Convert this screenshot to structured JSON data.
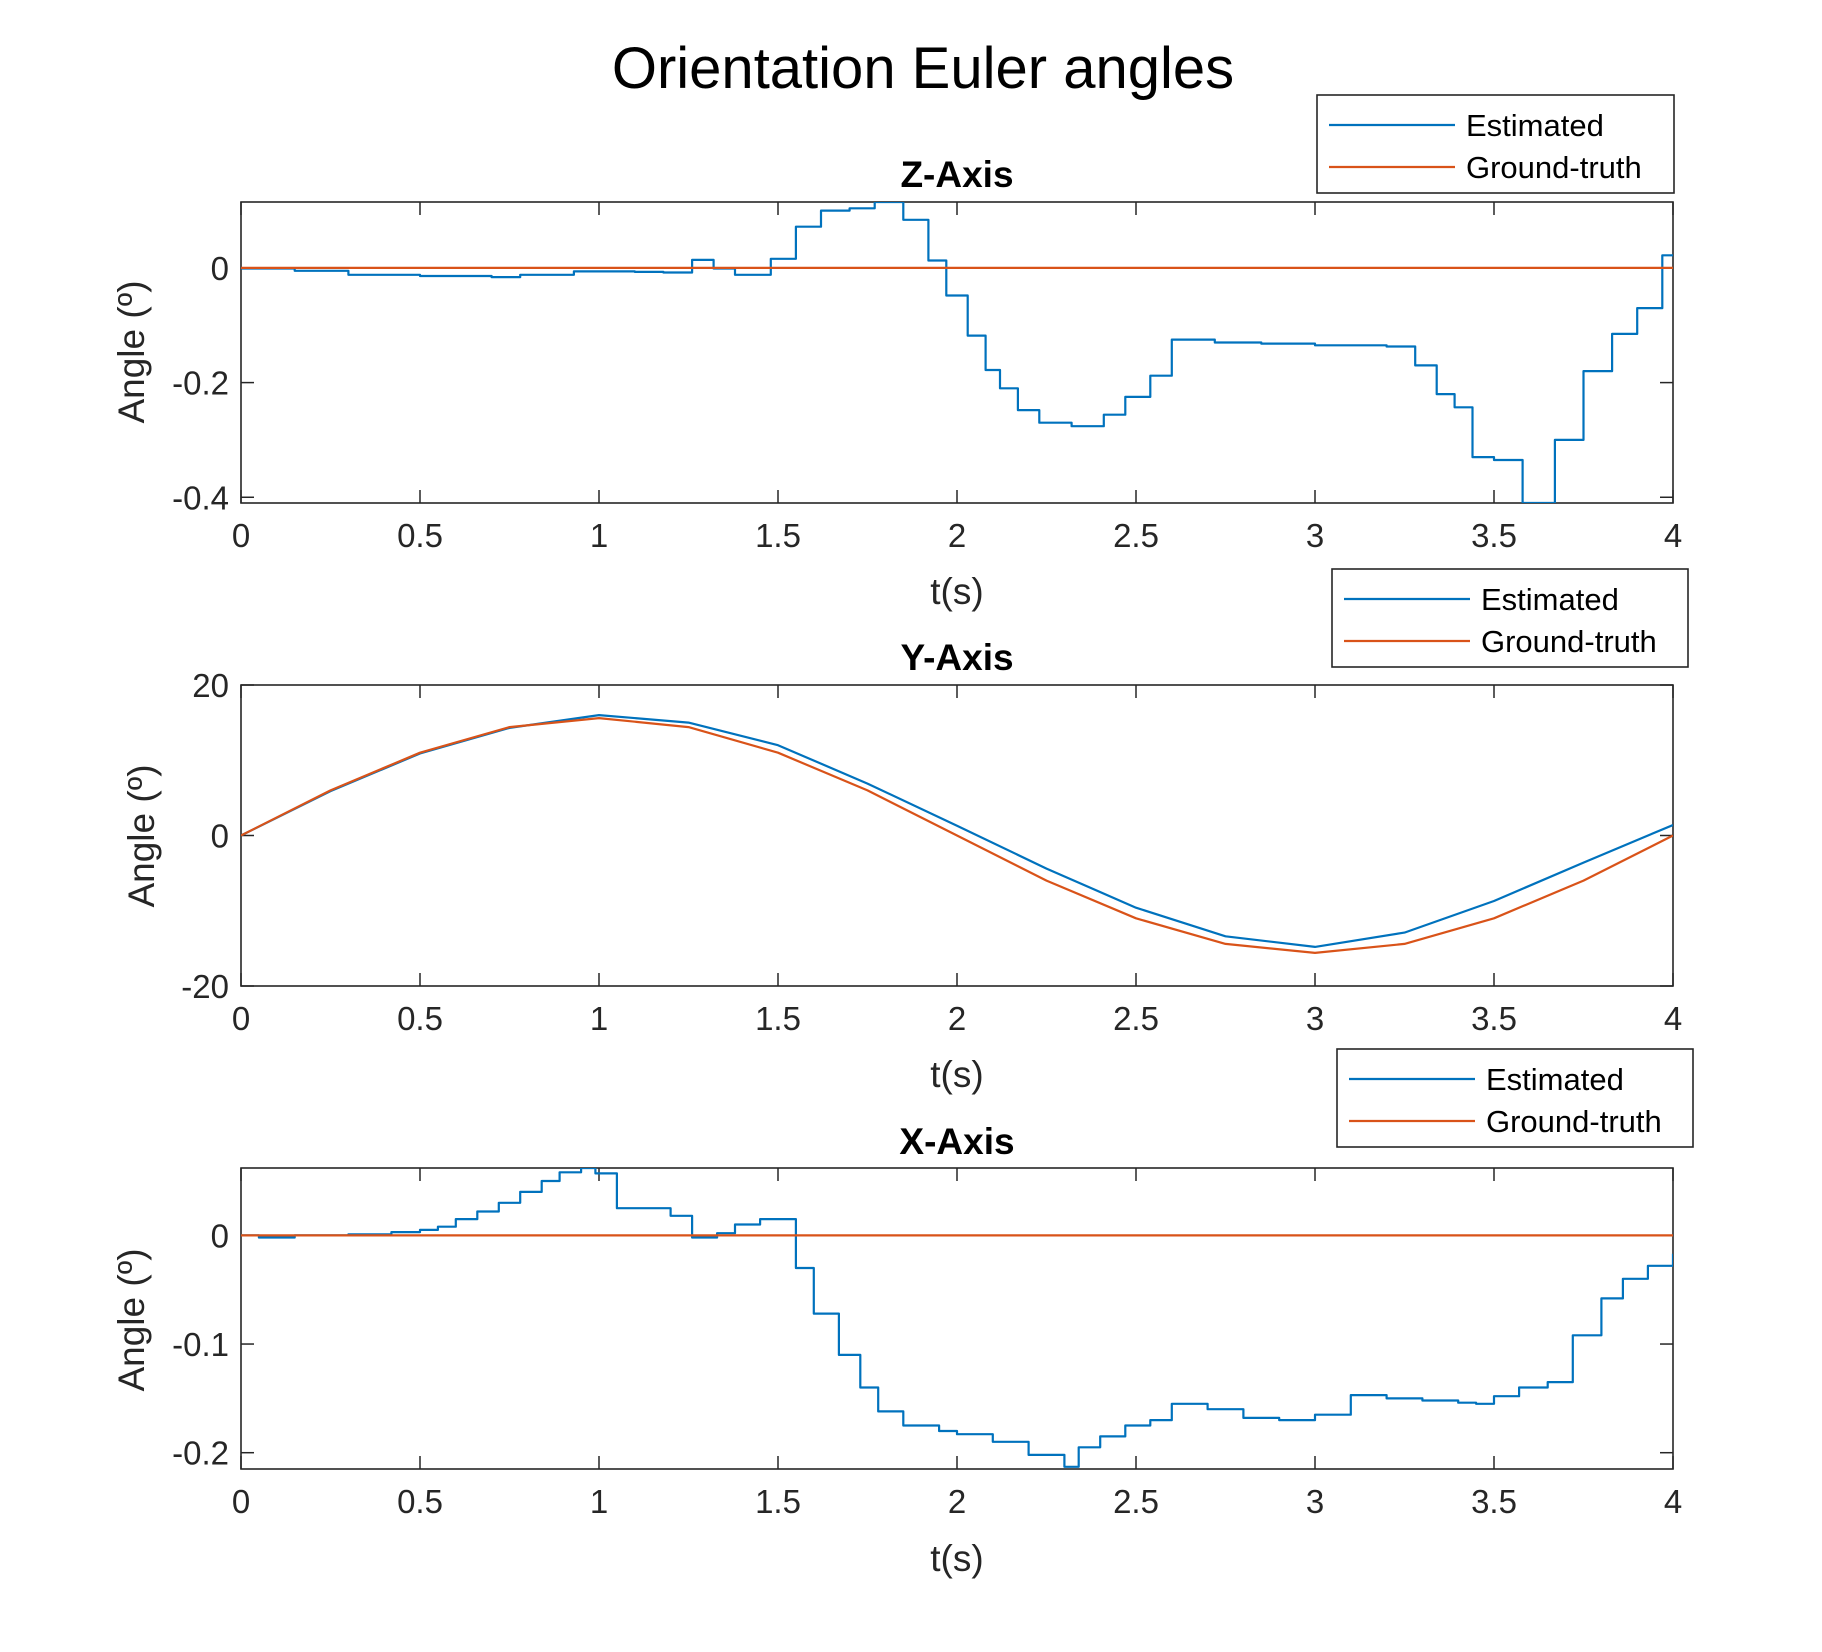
{
  "title": "Orientation Euler angles",
  "colors": {
    "estimated": "#0072BD",
    "ground_truth": "#D95319",
    "axes": "#262626"
  },
  "chart_data": [
    {
      "type": "line",
      "title": "Z-Axis",
      "xlabel": "t(s)",
      "ylabel": "Angle (º)",
      "xlim": [
        0,
        4
      ],
      "ylim": [
        -0.41,
        0.115
      ],
      "xticks": [
        0,
        0.5,
        1,
        1.5,
        2,
        2.5,
        3,
        3.5,
        4
      ],
      "xtick_labels": [
        "0",
        "0.5",
        "1",
        "1.5",
        "2",
        "2.5",
        "3",
        "3.5",
        "4"
      ],
      "yticks": [
        -0.4,
        -0.2,
        0
      ],
      "ytick_labels": [
        "-0.4",
        "-0.2",
        "0"
      ],
      "legend": {
        "position": "top-right-outside",
        "entries": [
          "Estimated",
          "Ground-truth"
        ]
      },
      "series": [
        {
          "name": "Estimated",
          "step": true,
          "x": [
            0,
            0.15,
            0.3,
            0.5,
            0.7,
            0.78,
            0.93,
            1.1,
            1.18,
            1.26,
            1.32,
            1.38,
            1.48,
            1.55,
            1.62,
            1.7,
            1.77,
            1.85,
            1.92,
            1.97,
            2.03,
            2.08,
            2.12,
            2.17,
            2.23,
            2.32,
            2.41,
            2.47,
            2.54,
            2.6,
            2.72,
            2.85,
            3.0,
            3.2,
            3.28,
            3.34,
            3.39,
            3.44,
            3.5,
            3.58,
            3.67,
            3.75,
            3.83,
            3.9,
            3.97,
            4.0
          ],
          "y": [
            -0.001,
            -0.005,
            -0.012,
            -0.014,
            -0.016,
            -0.012,
            -0.006,
            -0.007,
            -0.008,
            0.014,
            -0.001,
            -0.012,
            0.016,
            0.072,
            0.1,
            0.104,
            0.115,
            0.084,
            0.013,
            -0.048,
            -0.118,
            -0.178,
            -0.21,
            -0.248,
            -0.27,
            -0.276,
            -0.256,
            -0.225,
            -0.188,
            -0.125,
            -0.13,
            -0.132,
            -0.135,
            -0.137,
            -0.17,
            -0.22,
            -0.243,
            -0.33,
            -0.335,
            -0.41,
            -0.3,
            -0.18,
            -0.115,
            -0.07,
            0.022,
            0.022
          ]
        },
        {
          "name": "Ground-truth",
          "step": false,
          "x": [
            0,
            4
          ],
          "y": [
            0,
            0
          ]
        }
      ]
    },
    {
      "type": "line",
      "title": "Y-Axis",
      "xlabel": "t(s)",
      "ylabel": "Angle (º)",
      "xlim": [
        0,
        4
      ],
      "ylim": [
        -20,
        20
      ],
      "xticks": [
        0,
        0.5,
        1,
        1.5,
        2,
        2.5,
        3,
        3.5,
        4
      ],
      "xtick_labels": [
        "0",
        "0.5",
        "1",
        "1.5",
        "2",
        "2.5",
        "3",
        "3.5",
        "4"
      ],
      "yticks": [
        -20,
        0,
        20
      ],
      "ytick_labels": [
        "-20",
        "0",
        "20"
      ],
      "legend": {
        "position": "top-right-outside",
        "entries": [
          "Estimated",
          "Ground-truth"
        ]
      },
      "series": [
        {
          "name": "Estimated",
          "step": false,
          "x": [
            0,
            0.25,
            0.5,
            0.75,
            1.0,
            1.25,
            1.5,
            1.75,
            2.0,
            2.25,
            2.5,
            2.75,
            3.0,
            3.25,
            3.5,
            3.75,
            4.0
          ],
          "y": [
            0,
            5.9,
            10.9,
            14.3,
            16.0,
            15.0,
            12.0,
            6.9,
            1.3,
            -4.4,
            -9.6,
            -13.4,
            -14.8,
            -12.9,
            -8.7,
            -3.6,
            1.4
          ]
        },
        {
          "name": "Ground-truth",
          "step": false,
          "x": [
            0,
            0.25,
            0.5,
            0.75,
            1.0,
            1.25,
            1.5,
            1.75,
            2.0,
            2.25,
            2.5,
            2.75,
            3.0,
            3.25,
            3.5,
            3.75,
            4.0
          ],
          "y": [
            0,
            6.0,
            11.0,
            14.4,
            15.6,
            14.4,
            11.0,
            6.0,
            0,
            -6.0,
            -11.0,
            -14.4,
            -15.6,
            -14.4,
            -11.0,
            -6.0,
            0
          ]
        }
      ]
    },
    {
      "type": "line",
      "title": "X-Axis",
      "xlabel": "t(s)",
      "ylabel": "Angle (º)",
      "xlim": [
        0,
        4
      ],
      "ylim": [
        -0.215,
        0.062
      ],
      "xticks": [
        0,
        0.5,
        1,
        1.5,
        2,
        2.5,
        3,
        3.5,
        4
      ],
      "xtick_labels": [
        "0",
        "0.5",
        "1",
        "1.5",
        "2",
        "2.5",
        "3",
        "3.5",
        "4"
      ],
      "yticks": [
        -0.2,
        -0.1,
        0
      ],
      "ytick_labels": [
        "-0.2",
        "-0.1",
        "0"
      ],
      "legend": {
        "position": "top-right-outside",
        "entries": [
          "Estimated",
          "Ground-truth"
        ]
      },
      "series": [
        {
          "name": "Estimated",
          "step": true,
          "x": [
            0,
            0.05,
            0.15,
            0.3,
            0.42,
            0.5,
            0.55,
            0.6,
            0.66,
            0.72,
            0.78,
            0.84,
            0.89,
            0.95,
            0.99,
            1.05,
            1.2,
            1.26,
            1.33,
            1.38,
            1.45,
            1.55,
            1.6,
            1.67,
            1.73,
            1.78,
            1.85,
            1.95,
            2.0,
            2.1,
            2.2,
            2.3,
            2.34,
            2.4,
            2.47,
            2.54,
            2.6,
            2.7,
            2.8,
            2.9,
            3.0,
            3.1,
            3.2,
            3.3,
            3.4,
            3.45,
            3.5,
            3.57,
            3.65,
            3.72,
            3.8,
            3.86,
            3.93,
            4.0
          ],
          "y": [
            0,
            -0.002,
            0,
            0.001,
            0.003,
            0.005,
            0.008,
            0.015,
            0.022,
            0.03,
            0.04,
            0.05,
            0.058,
            0.062,
            0.057,
            0.025,
            0.018,
            -0.002,
            0.002,
            0.01,
            0.015,
            -0.03,
            -0.072,
            -0.11,
            -0.14,
            -0.162,
            -0.175,
            -0.18,
            -0.183,
            -0.19,
            -0.202,
            -0.213,
            -0.195,
            -0.185,
            -0.175,
            -0.17,
            -0.155,
            -0.16,
            -0.168,
            -0.17,
            -0.165,
            -0.147,
            -0.15,
            -0.152,
            -0.154,
            -0.155,
            -0.148,
            -0.14,
            -0.135,
            -0.092,
            -0.058,
            -0.04,
            -0.028,
            -0.017
          ]
        },
        {
          "name": "Ground-truth",
          "step": false,
          "x": [
            0,
            4
          ],
          "y": [
            0,
            0
          ]
        }
      ]
    }
  ]
}
